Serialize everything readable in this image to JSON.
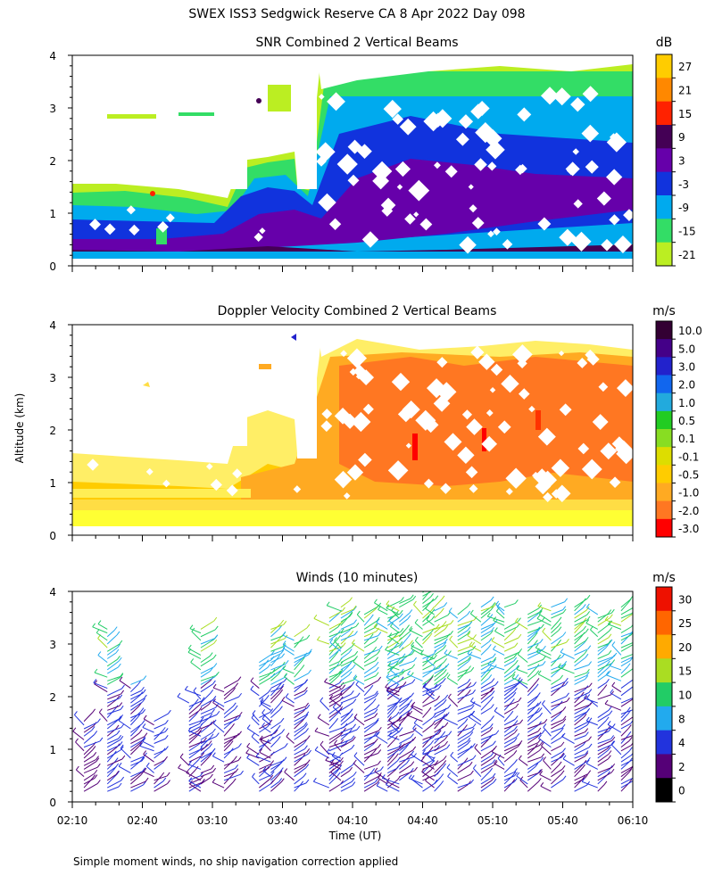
{
  "page": {
    "title": "SWEX ISS3 Sedgwick Reserve CA   8 Apr 2022 Day 098",
    "ylabel": "Altitude (km)",
    "footnote": "Simple moment winds, no ship navigation correction applied"
  },
  "chart_data": [
    {
      "type": "heatmap",
      "title": "SNR Combined 2 Vertical Beams",
      "unit": "dB",
      "colorbar_ticks": [
        "27",
        "21",
        "15",
        "9",
        "3",
        "-3",
        "-9",
        "-15",
        "-21"
      ],
      "colorbar_colors": [
        "#ffcc00",
        "#ff8800",
        "#ff2200",
        "#440055",
        "#6600aa",
        "#1133dd",
        "#00aaee",
        "#33dd66",
        "#bbee22"
      ],
      "ylim": [
        0,
        4
      ],
      "yticks": [
        "0",
        "1",
        "2",
        "3",
        "4"
      ],
      "note": "Low-level echo 0.1-1.5 km after 02:10 UT deepening to ~4 km after 03:50 UT"
    },
    {
      "type": "heatmap",
      "title": "Doppler Velocity Combined 2 Vertical Beams",
      "unit": "m/s",
      "colorbar_ticks": [
        "10.0",
        "5.0",
        "3.0",
        "2.0",
        "1.0",
        "0.5",
        "0.1",
        "-0.1",
        "-0.5",
        "-1.0",
        "-2.0",
        "-3.0"
      ],
      "colorbar_colors": [
        "#330033",
        "#440088",
        "#2222cc",
        "#1166ee",
        "#22aadd",
        "#22cc22",
        "#88dd22",
        "#dddd00",
        "#ffcc00",
        "#ffaa22",
        "#ff7722",
        "#ff0000"
      ],
      "ylim": [
        0,
        4
      ],
      "yticks": [
        "0",
        "1",
        "2",
        "3",
        "4"
      ]
    },
    {
      "type": "wind-barbs",
      "title": "Winds (10 minutes)",
      "unit": "m/s",
      "colorbar_ticks": [
        "30",
        "25",
        "20",
        "15",
        "10",
        "8",
        "4",
        "2",
        "0"
      ],
      "colorbar_colors": [
        "#ee1100",
        "#ff6600",
        "#ffaa00",
        "#aadd22",
        "#22cc66",
        "#22aaee",
        "#2233dd",
        "#550077",
        "#000000"
      ],
      "ylim": [
        0,
        4
      ],
      "yticks": [
        "0",
        "1",
        "2",
        "3",
        "4"
      ],
      "xlabel": "Time (UT)",
      "xticks": [
        "02:10",
        "02:40",
        "03:10",
        "03:40",
        "04:10",
        "04:40",
        "05:10",
        "05:40",
        "06:10"
      ],
      "profiles": [
        {
          "t": "02:15",
          "top": 1.6
        },
        {
          "t": "02:25",
          "top": 3.3
        },
        {
          "t": "02:35",
          "top": 2.3
        },
        {
          "t": "02:45",
          "top": 1.6
        },
        {
          "t": "03:00",
          "top": 1.9
        },
        {
          "t": "03:05",
          "top": 3.3
        },
        {
          "t": "03:15",
          "top": 2.2
        },
        {
          "t": "03:30",
          "top": 2.7
        },
        {
          "t": "03:35",
          "top": 3.3
        },
        {
          "t": "03:45",
          "top": 3.2
        },
        {
          "t": "04:00",
          "top": 3.5
        },
        {
          "t": "04:05",
          "top": 3.7
        },
        {
          "t": "04:15",
          "top": 3.6
        },
        {
          "t": "04:25",
          "top": 3.7
        },
        {
          "t": "04:30",
          "top": 3.8
        },
        {
          "t": "04:40",
          "top": 4.0
        },
        {
          "t": "04:45",
          "top": 3.7
        },
        {
          "t": "04:55",
          "top": 3.6
        },
        {
          "t": "05:05",
          "top": 3.7
        },
        {
          "t": "05:15",
          "top": 3.7
        },
        {
          "t": "05:25",
          "top": 3.6
        },
        {
          "t": "05:35",
          "top": 3.7
        },
        {
          "t": "05:45",
          "top": 3.7
        },
        {
          "t": "05:55",
          "top": 3.6
        },
        {
          "t": "06:05",
          "top": 3.7
        }
      ]
    }
  ]
}
